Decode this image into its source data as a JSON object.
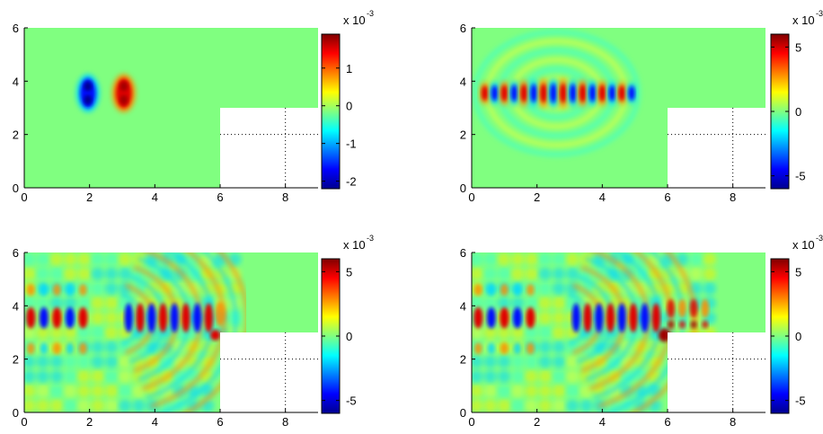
{
  "chart_data": [
    {
      "type": "heatmap",
      "title": "",
      "xlabel": "",
      "ylabel": "",
      "x_ticks": [
        "0",
        "2",
        "4",
        "6",
        "8"
      ],
      "y_ticks": [
        "0",
        "2",
        "4",
        "6"
      ],
      "xlim": [
        0,
        9
      ],
      "ylim": [
        0,
        6
      ],
      "domain": "L-shaped region: 0≤x≤9, 3≤y≤6 plus 0≤x≤6, 0≤y≤3",
      "field_scale": "x 10",
      "field_scale_exponent": "-3",
      "colorbar_ticks": [
        "-2",
        "-1",
        "0",
        "1"
      ],
      "colorbar_range": [
        -2.2,
        1.9
      ],
      "colormap": "jet",
      "pattern": "two localized pulses",
      "sources": [
        {
          "x": 1.95,
          "y": 3.55,
          "sign": "negative"
        },
        {
          "x": 3.05,
          "y": 3.55,
          "sign": "positive"
        }
      ]
    },
    {
      "type": "heatmap",
      "title": "",
      "xlabel": "",
      "ylabel": "",
      "x_ticks": [
        "0",
        "2",
        "4",
        "6",
        "8"
      ],
      "y_ticks": [
        "0",
        "2",
        "4",
        "6"
      ],
      "xlim": [
        0,
        9
      ],
      "ylim": [
        0,
        6
      ],
      "domain": "L-shaped region: 0≤x≤9, 3≤y≤6 plus 0≤x≤6, 0≤y≤3",
      "field_scale": "x 10",
      "field_scale_exponent": "-3",
      "colorbar_ticks": [
        "-5",
        "0",
        "5"
      ],
      "colorbar_range": [
        -6,
        6
      ],
      "colormap": "jet",
      "pattern": "wave packet spreading outward from center near (2.5, 3.5)"
    },
    {
      "type": "heatmap",
      "title": "",
      "xlabel": "",
      "ylabel": "",
      "x_ticks": [
        "0",
        "2",
        "4",
        "6",
        "8"
      ],
      "y_ticks": [
        "0",
        "2",
        "4",
        "6"
      ],
      "xlim": [
        0,
        9
      ],
      "ylim": [
        0,
        6
      ],
      "domain": "L-shaped region: 0≤x≤9, 3≤y≤6 plus 0≤x≤6, 0≤y≤3",
      "field_scale": "x 10",
      "field_scale_exponent": "-3",
      "colorbar_ticks": [
        "-5",
        "0",
        "5"
      ],
      "colorbar_range": [
        -6,
        6
      ],
      "colormap": "jet",
      "pattern": "wavefront propagating to the right, reaching x≈6–7"
    },
    {
      "type": "heatmap",
      "title": "",
      "xlabel": "",
      "ylabel": "",
      "x_ticks": [
        "0",
        "2",
        "4",
        "6",
        "8"
      ],
      "y_ticks": [
        "0",
        "2",
        "4",
        "6"
      ],
      "xlim": [
        0,
        9
      ],
      "ylim": [
        0,
        6
      ],
      "domain": "L-shaped region: 0≤x≤9, 3≤y≤6 plus 0≤x≤6, 0≤y≤3",
      "field_scale": "x 10",
      "field_scale_exponent": "-3",
      "colorbar_ticks": [
        "-5",
        "0",
        "5"
      ],
      "colorbar_range": [
        -6,
        6
      ],
      "colormap": "jet",
      "pattern": "wavefront entering the right channel, diffraction near corner (6, 3)"
    }
  ]
}
